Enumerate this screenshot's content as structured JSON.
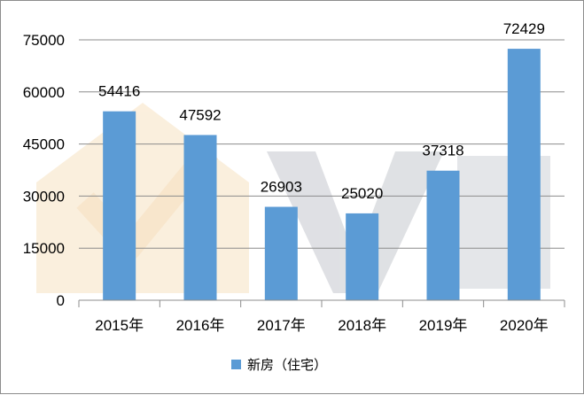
{
  "chart_data": {
    "type": "bar",
    "categories": [
      "2015年",
      "2016年",
      "2017年",
      "2018年",
      "2019年",
      "2020年"
    ],
    "series": [
      {
        "name": "新房（住宅）",
        "values": [
          54416,
          47592,
          26903,
          25020,
          37318,
          72429
        ],
        "color": "#5b9bd5"
      }
    ],
    "data_labels": [
      "54416",
      "47592",
      "26903",
      "25020",
      "37318",
      "72429"
    ],
    "y_ticks": [
      "0",
      "15000",
      "30000",
      "45000",
      "60000",
      "75000"
    ],
    "y_tick_values": [
      0,
      15000,
      30000,
      45000,
      60000,
      75000
    ],
    "ylim": [
      0,
      75000
    ],
    "grid": true,
    "legend_position": "bottom",
    "title": "",
    "xlabel": "",
    "ylabel": ""
  }
}
